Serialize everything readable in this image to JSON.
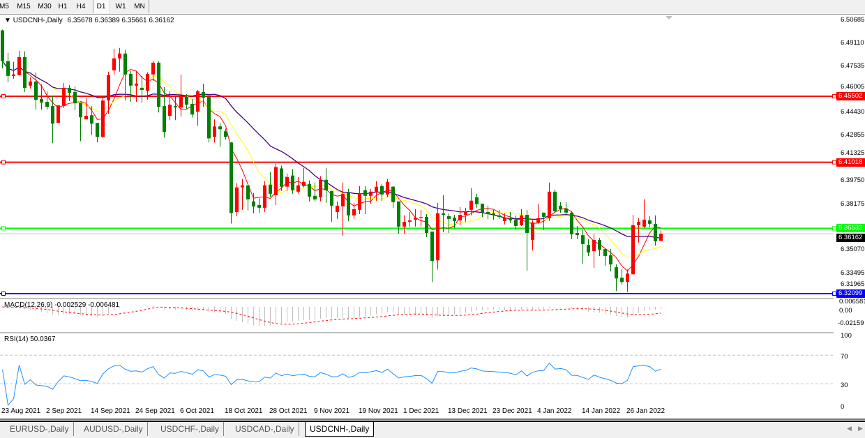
{
  "toolbar": {
    "timeframes": [
      "M5",
      "M15",
      "M30",
      "H1",
      "H4",
      "D1",
      "W1",
      "MN"
    ],
    "active": "D1"
  },
  "legend": {
    "symbol": "USDCNH-,Daily",
    "ohlc": "6.35678 6.36389 6.35661 6.36162"
  },
  "colors": {
    "bull": "#ff0000",
    "bear": "#008000",
    "ma_fast": "#ff0000",
    "ma_mid": "#ffff00",
    "ma_slow": "#4b0082",
    "macd_hist": "#c0c0c0",
    "macd_signal": "#ff0000",
    "rsi": "#1e90ff"
  },
  "price_axis": [
    "6.50685",
    "6.49110",
    "6.47535",
    "6.46005",
    "6.44430",
    "6.42855",
    "6.41325",
    "6.39750",
    "6.38175",
    "6.35070",
    "6.33495",
    "6.31965"
  ],
  "price_lines": [
    {
      "value": "6.45502",
      "color": "#ff0000",
      "text_color": "#ffffff"
    },
    {
      "value": "6.41018",
      "color": "#ff0000",
      "text_color": "#ffffff"
    },
    {
      "value": "6.36533",
      "color": "#00ff00",
      "text_color": "#ffffff"
    },
    {
      "value": "6.32099",
      "color": "#0000ff",
      "text_color": "#ffffff"
    }
  ],
  "current_price": {
    "value": "6.36162",
    "color": "#000000"
  },
  "macd": {
    "label": "MACD(12,26,9) -0.002529 -0.006481",
    "axis": [
      "0.006581",
      "0.00",
      "-0.02159"
    ]
  },
  "rsi": {
    "label": "RSI(14) 50.0367",
    "axis": [
      "100",
      "70",
      "30",
      "0"
    ],
    "levels": [
      70,
      30
    ]
  },
  "chart_data": {
    "type": "candlestick",
    "symbol": "USDCNH-",
    "timeframe": "Daily",
    "ohlc_order": [
      "open",
      "high",
      "low",
      "close"
    ],
    "x_labels": [
      "23 Aug 2021",
      "2 Sep 2021",
      "14 Sep 2021",
      "24 Sep 2021",
      "6 Oct 2021",
      "18 Oct 2021",
      "28 Oct 2021",
      "9 Nov 2021",
      "19 Nov 2021",
      "1 Dec 2021",
      "13 Dec 2021",
      "23 Dec 2021",
      "4 Jan 2022",
      "14 Jan 2022",
      "26 Jan 2022"
    ],
    "ylim": [
      6.31965,
      6.50685
    ],
    "candles": [
      [
        6.4997,
        6.5002,
        6.474,
        6.4788
      ],
      [
        6.4788,
        6.4845,
        6.4645,
        6.4688
      ],
      [
        6.4688,
        6.4784,
        6.4669,
        6.4698
      ],
      [
        6.4693,
        6.4859,
        6.4693,
        6.4816
      ],
      [
        6.4816,
        6.4855,
        6.4579,
        6.4607
      ],
      [
        6.4622,
        6.4679,
        6.4602,
        6.465
      ],
      [
        6.465,
        6.4712,
        6.4459,
        6.4526
      ],
      [
        6.4531,
        6.4631,
        6.4459,
        6.4507
      ],
      [
        6.4512,
        6.4583,
        6.4459,
        6.4478
      ],
      [
        6.4483,
        6.4555,
        6.4231,
        6.4364
      ],
      [
        6.4369,
        6.4488,
        6.4369,
        6.4488
      ],
      [
        6.4483,
        6.464,
        6.4469,
        6.4607
      ],
      [
        6.4607,
        6.4626,
        6.4517,
        6.4574
      ],
      [
        6.4579,
        6.4617,
        6.4455,
        6.4502
      ],
      [
        6.4507,
        6.4507,
        6.4245,
        6.4407
      ],
      [
        6.4393,
        6.4535,
        6.4393,
        6.4417
      ],
      [
        6.4421,
        6.4483,
        6.4288,
        6.4364
      ],
      [
        6.4369,
        6.4369,
        6.4236,
        6.4274
      ],
      [
        6.4274,
        6.4545,
        6.4265,
        6.4521
      ],
      [
        6.4521,
        6.4717,
        6.4431,
        6.4693
      ],
      [
        6.4726,
        6.4873,
        6.4698,
        6.4807
      ],
      [
        6.4807,
        6.4878,
        6.4717,
        6.484
      ],
      [
        6.484,
        6.4864,
        6.4521,
        6.4698
      ],
      [
        6.4702,
        6.4721,
        6.4512,
        6.4622
      ],
      [
        6.4622,
        6.4721,
        6.4512,
        6.4636
      ],
      [
        6.4607,
        6.4688,
        6.4507,
        6.4593
      ],
      [
        6.4588,
        6.4712,
        6.4526,
        6.4702
      ],
      [
        6.4698,
        6.4792,
        6.4655,
        6.4778
      ],
      [
        6.4778,
        6.4788,
        6.444,
        6.4478
      ],
      [
        6.4483,
        6.4612,
        6.4269,
        6.4307
      ],
      [
        6.4417,
        6.4583,
        6.4388,
        6.4493
      ],
      [
        6.4483,
        6.455,
        6.4388,
        6.4474
      ],
      [
        6.4474,
        6.4698,
        6.4412,
        6.4545
      ],
      [
        6.4545,
        6.4564,
        6.4464,
        6.4493
      ],
      [
        6.4498,
        6.4531,
        6.4407,
        6.4426
      ],
      [
        6.4445,
        6.4593,
        6.435,
        6.4583
      ],
      [
        6.4579,
        6.4636,
        6.4478,
        6.454
      ],
      [
        6.4545,
        6.4555,
        6.4236,
        6.4264
      ],
      [
        6.4274,
        6.4393,
        6.4236,
        6.4345
      ],
      [
        6.4345,
        6.4369,
        6.4207,
        6.4326
      ],
      [
        6.4312,
        6.433,
        6.4255,
        6.4274
      ],
      [
        6.4236,
        6.424,
        6.3686,
        6.3757
      ],
      [
        6.3764,
        6.3959,
        6.3736,
        6.3931
      ],
      [
        6.3931,
        6.3988,
        6.3779,
        6.3945
      ],
      [
        6.3945,
        6.3945,
        6.3774,
        6.385
      ],
      [
        6.3836,
        6.3893,
        6.3755,
        6.3802
      ],
      [
        6.3812,
        6.3859,
        6.3759,
        6.3793
      ],
      [
        6.3793,
        6.3974,
        6.3764,
        6.3945
      ],
      [
        6.395,
        6.4036,
        6.3864,
        6.3888
      ],
      [
        6.3878,
        6.4093,
        6.3812,
        6.4069
      ],
      [
        6.406,
        6.4079,
        6.3907,
        6.3936
      ],
      [
        6.3936,
        6.4026,
        6.3907,
        6.4002
      ],
      [
        6.4012,
        6.4055,
        6.3888,
        6.3912
      ],
      [
        6.3902,
        6.4002,
        6.3888,
        6.3945
      ],
      [
        6.394,
        6.4064,
        6.3931,
        6.3969
      ],
      [
        6.3955,
        6.3979,
        6.3836,
        6.3869
      ],
      [
        6.3874,
        6.3964,
        6.3836,
        6.385
      ],
      [
        6.3864,
        6.4007,
        6.3836,
        6.3983
      ],
      [
        6.3983,
        6.4064,
        6.3826,
        6.3912
      ],
      [
        6.3907,
        6.3907,
        6.3698,
        6.3807
      ],
      [
        6.3764,
        6.3836,
        6.3716,
        6.3807
      ],
      [
        6.3802,
        6.3964,
        6.3603,
        6.3888
      ],
      [
        6.3898,
        6.3921,
        6.3702,
        6.3741
      ],
      [
        6.3741,
        6.3826,
        6.3716,
        6.3783
      ],
      [
        6.3779,
        6.394,
        6.375,
        6.3888
      ],
      [
        6.3912,
        6.394,
        6.375,
        6.3874
      ],
      [
        6.3874,
        6.3921,
        6.3821,
        6.3902
      ],
      [
        6.3902,
        6.3974,
        6.384,
        6.3936
      ],
      [
        6.394,
        6.3955,
        6.384,
        6.3883
      ],
      [
        6.3883,
        6.3988,
        6.3864,
        6.3969
      ],
      [
        6.3936,
        6.394,
        6.3793,
        6.3831
      ],
      [
        6.3836,
        6.3836,
        6.3617,
        6.3665
      ],
      [
        6.3665,
        6.3741,
        6.3617,
        6.3698
      ],
      [
        6.3698,
        6.3764,
        6.3665,
        6.3707
      ],
      [
        6.3712,
        6.3783,
        6.3665,
        6.3726
      ],
      [
        6.3726,
        6.3779,
        6.3665,
        6.3731
      ],
      [
        6.3731,
        6.375,
        6.3593,
        6.3622
      ],
      [
        6.3631,
        6.3631,
        6.3288,
        6.3431
      ],
      [
        6.3436,
        6.3826,
        6.3374,
        6.3755
      ],
      [
        6.3755,
        6.3879,
        6.3626,
        6.3745
      ],
      [
        6.3736,
        6.3755,
        6.3622,
        6.3717
      ],
      [
        6.3726,
        6.3745,
        6.3655,
        6.3703
      ],
      [
        6.3707,
        6.3798,
        6.3674,
        6.3745
      ],
      [
        6.3745,
        6.3793,
        6.3698,
        6.3769
      ],
      [
        6.3779,
        6.3926,
        6.3741,
        6.3841
      ],
      [
        6.3864,
        6.3888,
        6.3793,
        6.3817
      ],
      [
        6.3821,
        6.3821,
        6.3731,
        6.376
      ],
      [
        6.3764,
        6.3807,
        6.3716,
        6.375
      ],
      [
        6.3755,
        6.3779,
        6.3712,
        6.3745
      ],
      [
        6.3741,
        6.3779,
        6.3717,
        6.3731
      ],
      [
        6.3703,
        6.3755,
        6.3679,
        6.3722
      ],
      [
        6.3722,
        6.3764,
        6.3689,
        6.3707
      ],
      [
        6.3712,
        6.3741,
        6.3646,
        6.3669
      ],
      [
        6.3674,
        6.3783,
        6.3669,
        6.3741
      ],
      [
        6.3745,
        6.3779,
        6.3365,
        6.3622
      ],
      [
        6.3574,
        6.3707,
        6.3503,
        6.3693
      ],
      [
        6.3693,
        6.3817,
        6.3684,
        6.3722
      ],
      [
        6.376,
        6.376,
        6.3641,
        6.3731
      ],
      [
        6.3722,
        6.3964,
        6.3703,
        6.3902
      ],
      [
        6.3902,
        6.3917,
        6.3755,
        6.3769
      ],
      [
        6.3807,
        6.3831,
        6.3759,
        6.3783
      ],
      [
        6.3788,
        6.3831,
        6.3745,
        6.376
      ],
      [
        6.376,
        6.3764,
        6.3579,
        6.3612
      ],
      [
        6.3622,
        6.3669,
        6.3579,
        6.3607
      ],
      [
        6.3607,
        6.3646,
        6.3413,
        6.3546
      ],
      [
        6.3541,
        6.3579,
        6.3465,
        6.3489
      ],
      [
        6.3498,
        6.3612,
        6.3384,
        6.3574
      ],
      [
        6.3574,
        6.3588,
        6.3465,
        6.3508
      ],
      [
        6.3513,
        6.3513,
        6.3398,
        6.3465
      ],
      [
        6.347,
        6.3513,
        6.336,
        6.3408
      ],
      [
        6.3389,
        6.3408,
        6.3227,
        6.3313
      ],
      [
        6.3318,
        6.3374,
        6.327,
        6.3289
      ],
      [
        6.3289,
        6.3374,
        6.3222,
        6.3346
      ],
      [
        6.3341,
        6.3745,
        6.3341,
        6.3674
      ],
      [
        6.3674,
        6.3722,
        6.3556,
        6.3698
      ],
      [
        6.3664,
        6.385,
        6.3655,
        6.3712
      ],
      [
        6.3707,
        6.3736,
        6.366,
        6.3684
      ],
      [
        6.3684,
        6.3741,
        6.3536,
        6.3565
      ],
      [
        6.35678,
        6.36389,
        6.35661,
        6.36162
      ]
    ]
  },
  "tabs": [
    {
      "label": "EURUSD-,Daily",
      "active": false
    },
    {
      "label": "AUDUSD-,Daily",
      "active": false
    },
    {
      "label": "USDCHF-,Daily",
      "active": false
    },
    {
      "label": "USDCAD-,Daily",
      "active": false
    },
    {
      "label": "USDCNH-,Daily",
      "active": true
    }
  ],
  "scroll": {
    "left_icon": "◀",
    "right_icon": "▶"
  }
}
